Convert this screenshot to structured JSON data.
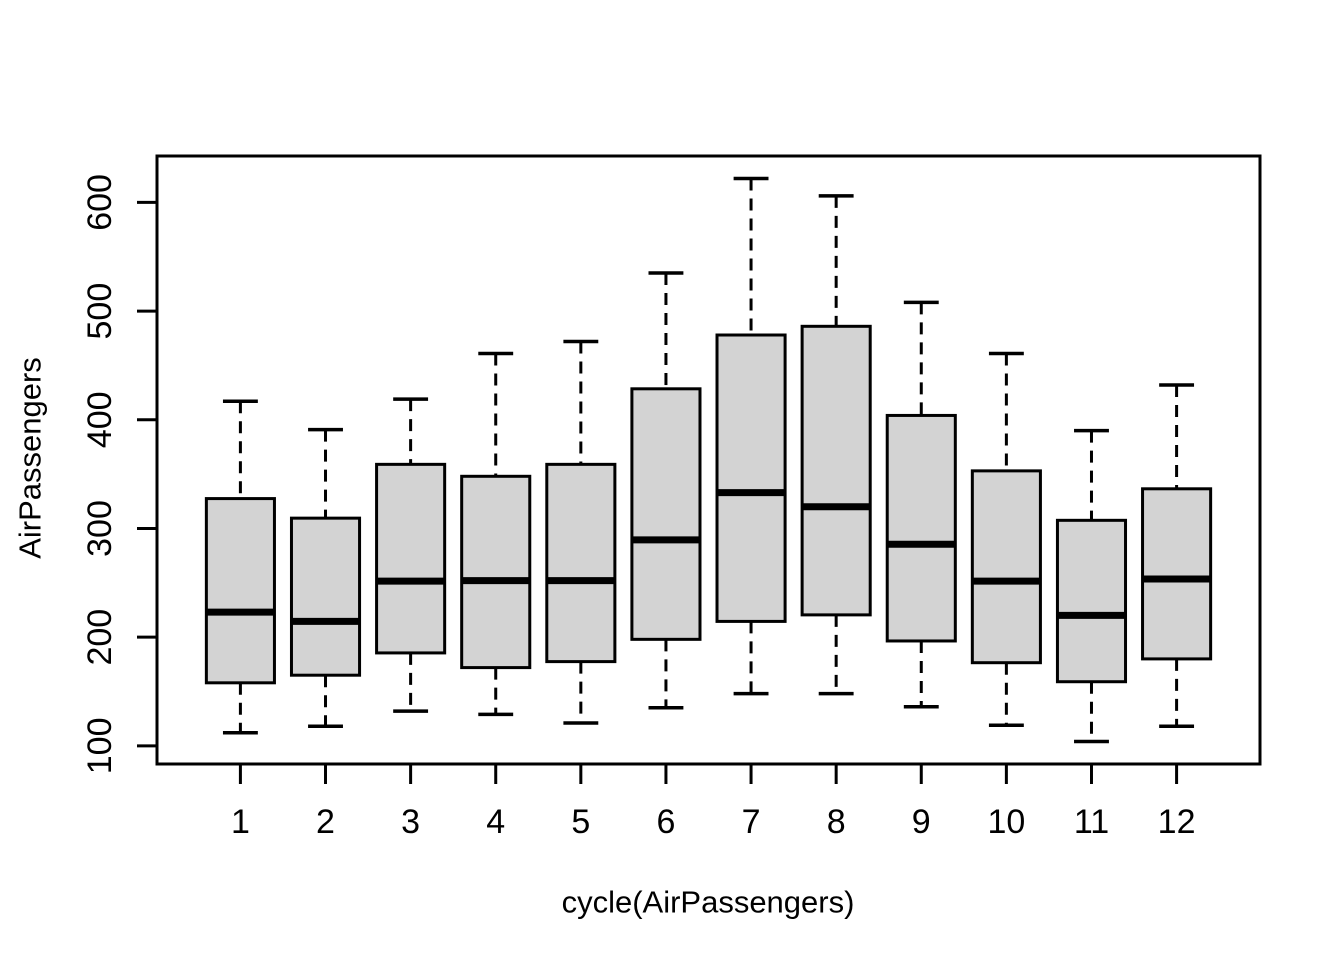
{
  "figure": {
    "background": "#ffffff",
    "box_fill": "#d3d3d3",
    "stroke_color": "#000000",
    "text_color": "#000000"
  },
  "chart_data": {
    "type": "boxplot",
    "title": "",
    "xlabel": "cycle(AirPassengers)",
    "ylabel": "AirPassengers",
    "categories": [
      "1",
      "2",
      "3",
      "4",
      "5",
      "6",
      "7",
      "8",
      "9",
      "10",
      "11",
      "12"
    ],
    "yticks": [
      100,
      200,
      300,
      400,
      500,
      600
    ],
    "ylim": [
      83.3,
      642.7
    ],
    "xlim": [
      0.02,
      12.98
    ],
    "grid": false,
    "legend": "none",
    "series": [
      {
        "month": "1",
        "whisker_low": 112,
        "q1": 158.0,
        "median": 223.0,
        "q3": 327.5,
        "whisker_high": 417
      },
      {
        "month": "2",
        "whisker_low": 118,
        "q1": 165.0,
        "median": 214.5,
        "q3": 309.5,
        "whisker_high": 391
      },
      {
        "month": "3",
        "whisker_low": 132,
        "q1": 185.5,
        "median": 251.5,
        "q3": 359.0,
        "whisker_high": 419
      },
      {
        "month": "4",
        "whisker_low": 129,
        "q1": 172.0,
        "median": 252.0,
        "q3": 348.0,
        "whisker_high": 461
      },
      {
        "month": "5",
        "whisker_low": 121,
        "q1": 177.5,
        "median": 252.0,
        "q3": 359.0,
        "whisker_high": 472
      },
      {
        "month": "6",
        "whisker_low": 135,
        "q1": 198.0,
        "median": 289.5,
        "q3": 428.5,
        "whisker_high": 535
      },
      {
        "month": "7",
        "whisker_low": 148,
        "q1": 214.5,
        "median": 333.0,
        "q3": 478.0,
        "whisker_high": 622
      },
      {
        "month": "8",
        "whisker_low": 148,
        "q1": 220.5,
        "median": 320.0,
        "q3": 486.0,
        "whisker_high": 606
      },
      {
        "month": "9",
        "whisker_low": 136,
        "q1": 196.5,
        "median": 285.5,
        "q3": 404.0,
        "whisker_high": 508
      },
      {
        "month": "10",
        "whisker_low": 119,
        "q1": 176.5,
        "median": 251.5,
        "q3": 353.0,
        "whisker_high": 461
      },
      {
        "month": "11",
        "whisker_low": 104,
        "q1": 159.0,
        "median": 220.0,
        "q3": 307.5,
        "whisker_high": 390
      },
      {
        "month": "12",
        "whisker_low": 118,
        "q1": 180.0,
        "median": 253.5,
        "q3": 336.5,
        "whisker_high": 432
      }
    ]
  }
}
